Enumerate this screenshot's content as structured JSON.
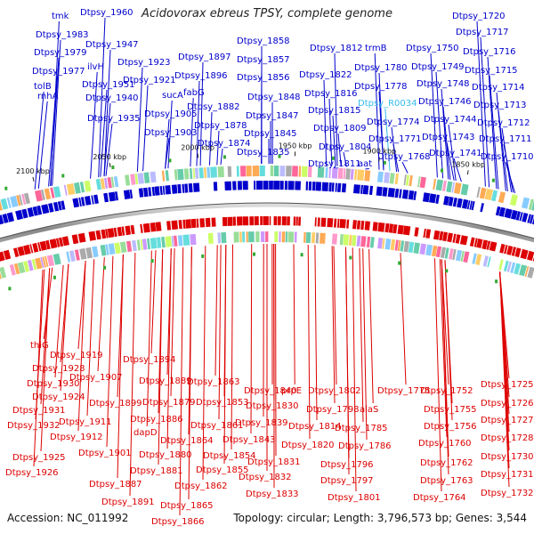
{
  "title": "Acidovorax ebreus TPSY, complete genome",
  "accession": "Accession: NC_011992",
  "topology": "Topology: circular; Length: 3,796,573 bp; Genes: 3,544",
  "colors": {
    "top": "#0000cc",
    "bottom": "#dd0000",
    "highlight": "#33bbee",
    "ticks": "#222222"
  },
  "scale": [
    {
      "label": "2100 kbp"
    },
    {
      "label": "2050 kbp"
    },
    {
      "label": "2000 kbp"
    },
    {
      "label": "1950 kbp"
    },
    {
      "label": "1900 kbp"
    },
    {
      "label": "1850 kbp"
    }
  ],
  "top_labels": [
    {
      "text": "tmk"
    },
    {
      "text": "Dtpsy_1960"
    },
    {
      "text": "Dtpsy_1983"
    },
    {
      "text": "Dtpsy_1947"
    },
    {
      "text": "Dtpsy_1979"
    },
    {
      "text": "ilvH"
    },
    {
      "text": "Dtpsy_1977"
    },
    {
      "text": "Dtpsy_1951"
    },
    {
      "text": "tolB"
    },
    {
      "text": "rnhA"
    },
    {
      "text": "Dtpsy_1940"
    },
    {
      "text": "Dtpsy_1935"
    },
    {
      "text": "Dtpsy_1923"
    },
    {
      "text": "Dtpsy_1921"
    },
    {
      "text": "sucA"
    },
    {
      "text": "Dtpsy_1905"
    },
    {
      "text": "Dtpsy_1903"
    },
    {
      "text": "Dtpsy_1897"
    },
    {
      "text": "Dtpsy_1896"
    },
    {
      "text": "fabG"
    },
    {
      "text": "Dtpsy_1882"
    },
    {
      "text": "Dtpsy_1878"
    },
    {
      "text": "Dtpsy_1874"
    },
    {
      "text": "Dtpsy_1858"
    },
    {
      "text": "Dtpsy_1857"
    },
    {
      "text": "Dtpsy_1856"
    },
    {
      "text": "Dtpsy_1848"
    },
    {
      "text": "Dtpsy_1847"
    },
    {
      "text": "Dtpsy_1845"
    },
    {
      "text": "Dtpsy_1835"
    },
    {
      "text": "Dtpsy_1812"
    },
    {
      "text": "Dtpsy_1822"
    },
    {
      "text": "Dtpsy_1816"
    },
    {
      "text": "Dtpsy_1815"
    },
    {
      "text": "Dtpsy_1809"
    },
    {
      "text": "Dtpsy_1804"
    },
    {
      "text": "Dtpsy_1811"
    },
    {
      "text": "trmB"
    },
    {
      "text": "Dtpsy_1780"
    },
    {
      "text": "Dtpsy_1778"
    },
    {
      "text": "Dtpsy_R0034"
    },
    {
      "text": "Dtpsy_1774"
    },
    {
      "text": "Dtpsy_1771"
    },
    {
      "text": "Dtpsy_1768"
    },
    {
      "text": "aat"
    },
    {
      "text": "Dtpsy_1750"
    },
    {
      "text": "Dtpsy_1749"
    },
    {
      "text": "Dtpsy_1748"
    },
    {
      "text": "Dtpsy_1746"
    },
    {
      "text": "Dtpsy_1744"
    },
    {
      "text": "Dtpsy_1743"
    },
    {
      "text": "Dtpsy_1741"
    },
    {
      "text": "Dtpsy_1720"
    },
    {
      "text": "Dtpsy_1717"
    },
    {
      "text": "Dtpsy_1716"
    },
    {
      "text": "Dtpsy_1715"
    },
    {
      "text": "Dtpsy_1714"
    },
    {
      "text": "Dtpsy_1713"
    },
    {
      "text": "Dtpsy_1712"
    },
    {
      "text": "Dtpsy_1711"
    },
    {
      "text": "Dtpsy_1710"
    }
  ],
  "bottom_labels": [
    {
      "text": "thiG"
    },
    {
      "text": "Dtpsy_1919"
    },
    {
      "text": "Dtpsy_1928"
    },
    {
      "text": "Dtpsy_1930"
    },
    {
      "text": "Dtpsy_1924"
    },
    {
      "text": "Dtpsy_1931"
    },
    {
      "text": "Dtpsy_1932"
    },
    {
      "text": "Dtpsy_1925"
    },
    {
      "text": "Dtpsy_1926"
    },
    {
      "text": "Dtpsy_1911"
    },
    {
      "text": "Dtpsy_1912"
    },
    {
      "text": "Dtpsy_1907"
    },
    {
      "text": "Dtpsy_1901"
    },
    {
      "text": "Dtpsy_1899"
    },
    {
      "text": "Dtpsy_1894"
    },
    {
      "text": "Dtpsy_1889"
    },
    {
      "text": "Dtpsy_1886"
    },
    {
      "text": "Dtpsy_1887"
    },
    {
      "text": "Dtpsy_1891"
    },
    {
      "text": "dapD"
    },
    {
      "text": "Dtpsy_1880"
    },
    {
      "text": "Dtpsy_1881"
    },
    {
      "text": "Dtpsy_1879"
    },
    {
      "text": "Dtpsy_1865"
    },
    {
      "text": "Dtpsy_1866"
    },
    {
      "text": "Dtpsy_1863"
    },
    {
      "text": "Dtpsy_1853"
    },
    {
      "text": "Dtpsy_1861"
    },
    {
      "text": "Dtpsy_1864"
    },
    {
      "text": "Dtpsy_1862"
    },
    {
      "text": "Dtpsy_1854"
    },
    {
      "text": "Dtpsy_1855"
    },
    {
      "text": "Dtpsy_1840"
    },
    {
      "text": "Dtpsy_1830"
    },
    {
      "text": "Dtpsy_1839"
    },
    {
      "text": "Dtpsy_1843"
    },
    {
      "text": "Dtpsy_1831"
    },
    {
      "text": "Dtpsy_1832"
    },
    {
      "text": "Dtpsy_1833"
    },
    {
      "text": "prpE"
    },
    {
      "text": "Dtpsy_1814"
    },
    {
      "text": "Dtpsy_1820"
    },
    {
      "text": "Dtpsy_1802"
    },
    {
      "text": "Dtpsy_1798"
    },
    {
      "text": "alaS"
    },
    {
      "text": "Dtpsy_1785"
    },
    {
      "text": "Dtpsy_1786"
    },
    {
      "text": "Dtpsy_1796"
    },
    {
      "text": "Dtpsy_1797"
    },
    {
      "text": "Dtpsy_1801"
    },
    {
      "text": "Dtpsy_1775"
    },
    {
      "text": "Dtpsy_1752"
    },
    {
      "text": "Dtpsy_1755"
    },
    {
      "text": "Dtpsy_1756"
    },
    {
      "text": "Dtpsy_1760"
    },
    {
      "text": "Dtpsy_1762"
    },
    {
      "text": "Dtpsy_1763"
    },
    {
      "text": "Dtpsy_1764"
    },
    {
      "text": "Dtpsy_1725"
    },
    {
      "text": "Dtpsy_1726"
    },
    {
      "text": "Dtpsy_1727"
    },
    {
      "text": "Dtpsy_1728"
    },
    {
      "text": "Dtpsy_1730"
    },
    {
      "text": "Dtpsy_1731"
    },
    {
      "text": "Dtpsy_1732"
    }
  ]
}
